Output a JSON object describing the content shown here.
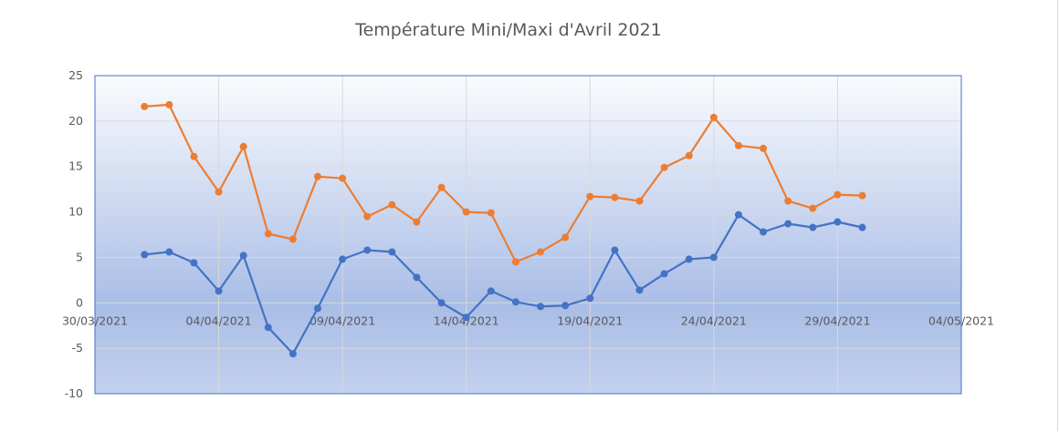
{
  "chart_data": {
    "type": "line",
    "title": "Température Mini/Maxi d'Avril 2021",
    "xlabel": "",
    "ylabel": "",
    "ylim": [
      -10,
      25
    ],
    "yticks": [
      "25",
      "20",
      "15",
      "10",
      "5",
      "0",
      "-5",
      "-10"
    ],
    "xlim": [
      "2021-03-30",
      "2021-05-04"
    ],
    "xticks": [
      {
        "date": "2021-03-30",
        "label": "30/03/2021"
      },
      {
        "date": "2021-04-04",
        "label": "04/04/2021"
      },
      {
        "date": "2021-04-09",
        "label": "09/04/2021"
      },
      {
        "date": "2021-04-14",
        "label": "14/04/2021"
      },
      {
        "date": "2021-04-19",
        "label": "19/04/2021"
      },
      {
        "date": "2021-04-24",
        "label": "24/04/2021"
      },
      {
        "date": "2021-04-29",
        "label": "29/04/2021"
      },
      {
        "date": "2021-05-04",
        "label": "04/05/2021"
      }
    ],
    "grid": true,
    "legend": "none",
    "x": [
      "2021-04-01",
      "2021-04-02",
      "2021-04-03",
      "2021-04-04",
      "2021-04-05",
      "2021-04-06",
      "2021-04-07",
      "2021-04-08",
      "2021-04-09",
      "2021-04-10",
      "2021-04-11",
      "2021-04-12",
      "2021-04-13",
      "2021-04-14",
      "2021-04-15",
      "2021-04-16",
      "2021-04-17",
      "2021-04-18",
      "2021-04-19",
      "2021-04-20",
      "2021-04-21",
      "2021-04-22",
      "2021-04-23",
      "2021-04-24",
      "2021-04-25",
      "2021-04-26",
      "2021-04-27",
      "2021-04-28",
      "2021-04-29",
      "2021-04-30"
    ],
    "series": [
      {
        "color": "#ed7d31",
        "values": [
          21.6,
          21.8,
          16.1,
          12.2,
          17.2,
          7.6,
          7.0,
          13.9,
          13.7,
          9.5,
          10.8,
          8.9,
          12.7,
          10.0,
          9.9,
          4.5,
          5.6,
          7.2,
          11.7,
          11.6,
          11.2,
          14.9,
          16.2,
          20.4,
          17.3,
          17.0,
          11.2,
          10.4,
          11.9,
          11.8
        ]
      },
      {
        "color": "#4472c4",
        "values": [
          5.3,
          5.6,
          4.4,
          1.3,
          5.2,
          -2.7,
          -5.6,
          -0.6,
          4.8,
          5.8,
          5.6,
          2.8,
          0.0,
          -1.6,
          1.3,
          0.1,
          -0.4,
          -0.3,
          0.5,
          5.8,
          1.4,
          3.2,
          4.8,
          5.0,
          9.7,
          7.8,
          8.7,
          8.3,
          8.9,
          8.3
        ]
      }
    ]
  }
}
